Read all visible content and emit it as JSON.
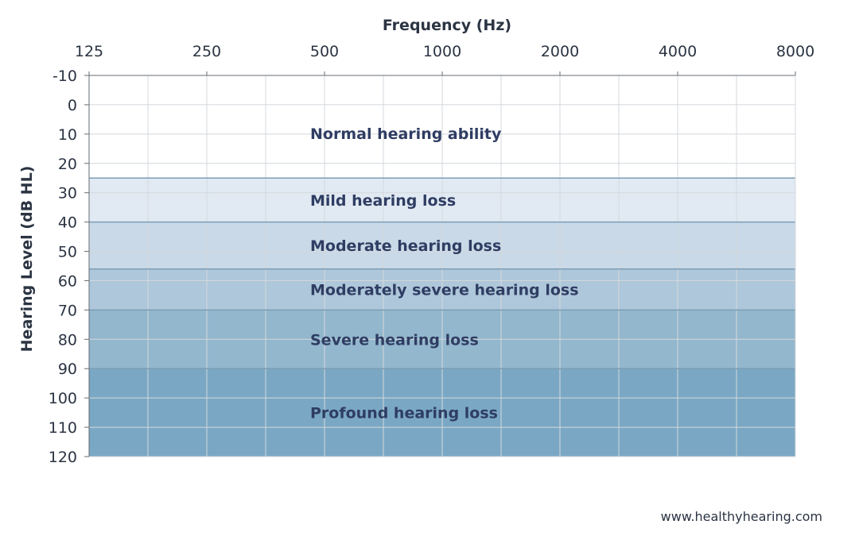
{
  "chart_data": {
    "type": "area",
    "title": "",
    "xlabel": "Frequency (Hz)",
    "ylabel": "Hearing Level (dB HL)",
    "x_scale": "log2",
    "x_ticks": [
      125,
      250,
      500,
      1000,
      2000,
      4000,
      8000
    ],
    "x_tick_labels": [
      "125",
      "250",
      "500",
      "1000",
      "2000",
      "4000",
      "8000"
    ],
    "ylim": [
      -10,
      120
    ],
    "y_inverted": true,
    "y_ticks": [
      -10,
      0,
      10,
      20,
      30,
      40,
      50,
      60,
      70,
      80,
      90,
      100,
      110,
      120
    ],
    "y_tick_labels": [
      "-10",
      "0",
      "10",
      "20",
      "30",
      "40",
      "50",
      "60",
      "70",
      "80",
      "90",
      "100",
      "110",
      "120"
    ],
    "grid": true,
    "bands": [
      {
        "name": "Normal hearing ability",
        "from_db": -10,
        "to_db": 25,
        "color": "#ffffff"
      },
      {
        "name": "Mild hearing loss",
        "from_db": 25,
        "to_db": 40,
        "color": "#e1eaf3"
      },
      {
        "name": "Moderate hearing loss",
        "from_db": 40,
        "to_db": 56,
        "color": "#c9d9e7"
      },
      {
        "name": "Moderately severe hearing loss",
        "from_db": 56,
        "to_db": 70,
        "color": "#aec7da"
      },
      {
        "name": "Severe hearing loss",
        "from_db": 70,
        "to_db": 90,
        "color": "#93b7cd"
      },
      {
        "name": "Profound hearing loss",
        "from_db": 90,
        "to_db": 120,
        "color": "#7aa8c4"
      }
    ]
  },
  "source": "www.healthyhearing.com",
  "colors": {
    "grid": "#d4d8dc",
    "grid_on_color": "#e8eef3",
    "boundary": "#7d9cb5",
    "axis": "#666d75",
    "label": "#2f3d63"
  }
}
